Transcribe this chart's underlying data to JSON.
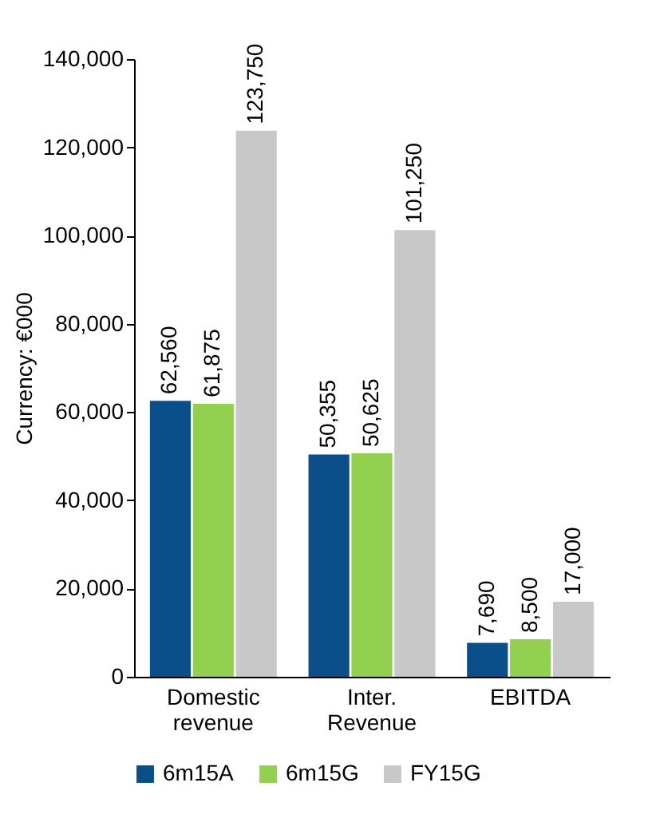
{
  "chart_data": {
    "type": "bar",
    "ylabel": "Currency: €000",
    "categories": [
      "Domestic revenue",
      "Inter. Revenue",
      "EBITDA"
    ],
    "series": [
      {
        "name": "6m15A",
        "color": "#0b4f8a",
        "values": [
          62560,
          50355,
          7690
        ],
        "value_labels": [
          "62,560",
          "50,355",
          "7,690"
        ]
      },
      {
        "name": "6m15G",
        "color": "#92d050",
        "values": [
          61875,
          50625,
          8500
        ],
        "value_labels": [
          "61,875",
          "50,625",
          "8,500"
        ]
      },
      {
        "name": "FY15G",
        "color": "#c8c8c8",
        "values": [
          123750,
          101250,
          17000
        ],
        "value_labels": [
          "123,750",
          "101,250",
          "17,000"
        ]
      }
    ],
    "ylim": [
      0,
      140000
    ],
    "yticks": [
      0,
      {
        "value": 20000,
        "label": "20,000"
      },
      {
        "value": 40000,
        "label": "40,000"
      },
      {
        "value": 60000,
        "label": "60,000"
      },
      {
        "value": 80000,
        "label": "80,000"
      },
      {
        "value": 100000,
        "label": "100,000"
      },
      {
        "value": 120000,
        "label": "120,000"
      },
      {
        "value": 140000,
        "label": "140,000"
      }
    ],
    "legend": "bottom",
    "grid": false
  }
}
